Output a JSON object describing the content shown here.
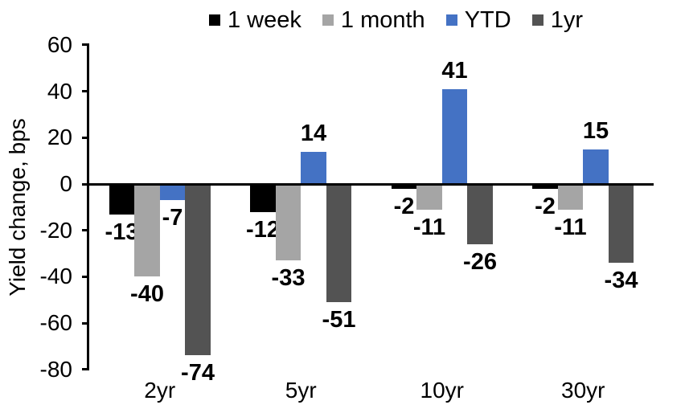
{
  "chart_data": {
    "type": "bar",
    "title": "",
    "ylabel": "Yield change, bps",
    "xlabel": "",
    "categories": [
      "2yr",
      "5yr",
      "10yr",
      "30yr"
    ],
    "series": [
      {
        "name": "1 week",
        "color": "#000000",
        "values": [
          -13,
          -12,
          -2,
          -2
        ]
      },
      {
        "name": "1 month",
        "color": "#A5A5A5",
        "values": [
          -40,
          -33,
          -11,
          -11
        ]
      },
      {
        "name": "YTD",
        "color": "#4472C4",
        "values": [
          -7,
          14,
          41,
          15
        ]
      },
      {
        "name": "1yr",
        "color": "#535353",
        "values": [
          -74,
          -51,
          -26,
          -34
        ]
      }
    ],
    "ylim": [
      -80,
      60
    ],
    "yticks": [
      60,
      40,
      20,
      0,
      -20,
      -40,
      -60,
      -80
    ],
    "legend_position": "top",
    "grid": false,
    "data_labels": true,
    "axis_color": "#000000",
    "text_color": "#000000",
    "background": "#FFFFFF"
  }
}
